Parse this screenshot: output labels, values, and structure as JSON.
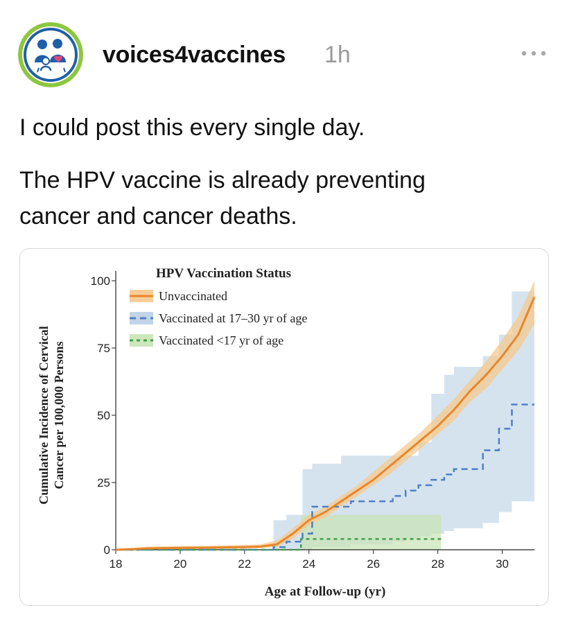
{
  "post": {
    "username": "voices4vaccines",
    "timestamp": "1h",
    "more_label": "•••",
    "text_line1": "I could post this every single day.",
    "text_line2": "The HPV vaccine is already preventing",
    "text_line3": "cancer and cancer deaths."
  },
  "colors": {
    "avatar_ring": "#8dc63f",
    "avatar_blue": "#1f5fa8",
    "unvaccinated": "#e8862a",
    "vaccinated_17_30": "#4f7fc1",
    "vaccinated_under_17": "#3fa04a"
  },
  "icons": {
    "avatar": "family-heart-logo",
    "more": "more-horizontal-icon"
  },
  "chart_data": {
    "type": "line",
    "legend_title": "HPV Vaccination Status",
    "legend_position": "top-left",
    "xlabel": "Age at Follow-up (yr)",
    "ylabel": "Cumulative Incidence of Cervical Cancer per 100,000 Persons",
    "ylabel_line1": "Cumulative Incidence of Cervical",
    "ylabel_line2": "Cancer per 100,000 Persons",
    "xlim": [
      18,
      31
    ],
    "ylim": [
      0,
      100
    ],
    "x_ticks": [
      18,
      20,
      22,
      24,
      26,
      28,
      30
    ],
    "x_tick_labels": [
      "18",
      "20",
      "22",
      "24",
      "26",
      "28",
      "30"
    ],
    "y_ticks": [
      0,
      25,
      50,
      75,
      100
    ],
    "y_tick_labels": [
      "0",
      "25",
      "50",
      "75",
      "100"
    ],
    "grid": false,
    "series": [
      {
        "name": "Unvaccinated",
        "style": "solid",
        "x": [
          18,
          19,
          20,
          21,
          22,
          22.5,
          23,
          23.5,
          24,
          24.5,
          25,
          25.5,
          26,
          26.5,
          27,
          27.5,
          28,
          28.5,
          29,
          29.5,
          30,
          30.5,
          31
        ],
        "y": [
          0,
          0.5,
          0.7,
          0.8,
          1.0,
          1.2,
          2,
          6,
          11,
          14,
          18,
          22,
          26,
          31,
          36,
          41,
          46,
          52,
          59,
          65,
          72,
          80,
          94
        ],
        "ci_low": [
          0,
          0,
          0.2,
          0.3,
          0.4,
          0.6,
          1,
          4,
          9,
          12,
          16,
          20,
          24,
          28,
          33,
          38,
          43,
          48,
          55,
          60,
          67,
          74,
          84
        ],
        "ci_high": [
          0,
          1.2,
          1.4,
          1.5,
          1.8,
          2,
          3.5,
          8,
          13,
          16,
          20,
          24,
          29,
          34,
          39,
          44,
          50,
          56,
          63,
          70,
          78,
          87,
          100
        ]
      },
      {
        "name": "Vaccinated at 17–30 yr of age",
        "style": "dashed",
        "x": [
          18,
          22.6,
          22.9,
          23.3,
          23.8,
          24.1,
          25.0,
          25.3,
          26.2,
          26.6,
          27.0,
          27.4,
          27.8,
          28.2,
          28.5,
          29.4,
          29.9,
          30.3,
          31
        ],
        "y": [
          0,
          0,
          1,
          3,
          6,
          16,
          16,
          18,
          18,
          20,
          22,
          24,
          26,
          28,
          30,
          37,
          45,
          54,
          54
        ],
        "ci_low": [
          0,
          0,
          0,
          0,
          0,
          1,
          1,
          2,
          2,
          3,
          4,
          5,
          6,
          7,
          8,
          10,
          14,
          18,
          30
        ],
        "ci_high": [
          0,
          0,
          11,
          13,
          30,
          32,
          35,
          35,
          35,
          35,
          35,
          40,
          58,
          65,
          68,
          72,
          80,
          96,
          96
        ]
      },
      {
        "name": "Vaccinated <17 yr of age",
        "style": "dotted",
        "x": [
          18,
          23.6,
          23.75,
          28.1
        ],
        "y": [
          0,
          0,
          4,
          4
        ],
        "ci_low": [
          0,
          0,
          0,
          0
        ],
        "ci_high": [
          0,
          0,
          13,
          16
        ]
      }
    ]
  }
}
